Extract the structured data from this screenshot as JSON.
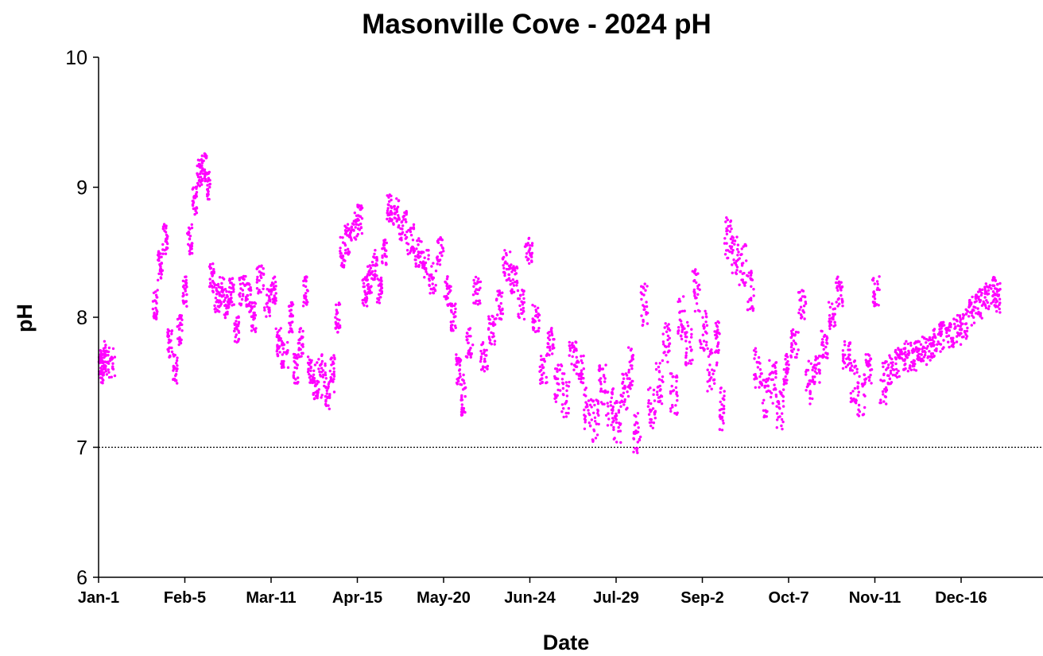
{
  "chart_data": {
    "type": "scatter",
    "title": "Masonville Cove - 2024 pH",
    "xlabel": "Date",
    "ylabel": "pH",
    "ylim": [
      6,
      10
    ],
    "xlim": [
      "2024-01-01",
      "2024-12-31"
    ],
    "y_ticks": [
      "6",
      "7",
      "8",
      "9",
      "10"
    ],
    "x_ticks": [
      "Jan-1",
      "Feb-5",
      "Mar-11",
      "Apr-15",
      "May-20",
      "Jun-24",
      "Jul-29",
      "Sep-2",
      "Oct-7",
      "Nov-11",
      "Dec-16"
    ],
    "grid": false,
    "legend": "none",
    "marker_color": "#ff00ff",
    "reference_line": {
      "y": 7,
      "style": "dotted",
      "color": "#000000"
    },
    "series": [
      {
        "points": [
          [
            "2024-01-01",
            7.65
          ],
          [
            "2024-01-02",
            7.6
          ],
          [
            "2024-01-03",
            7.7
          ],
          [
            "2024-01-04",
            7.65
          ],
          [
            "2024-01-23",
            8.1
          ],
          [
            "2024-01-25",
            8.4
          ],
          [
            "2024-01-27",
            8.6
          ],
          [
            "2024-01-29",
            7.8
          ],
          [
            "2024-01-31",
            7.6
          ],
          [
            "2024-02-02",
            7.9
          ],
          [
            "2024-02-04",
            8.2
          ],
          [
            "2024-02-06",
            8.6
          ],
          [
            "2024-02-08",
            8.9
          ],
          [
            "2024-02-10",
            9.1
          ],
          [
            "2024-02-12",
            9.15
          ],
          [
            "2024-02-14",
            9.0
          ],
          [
            "2024-02-15",
            8.3
          ],
          [
            "2024-02-17",
            8.15
          ],
          [
            "2024-02-19",
            8.2
          ],
          [
            "2024-02-21",
            8.1
          ],
          [
            "2024-02-23",
            8.2
          ],
          [
            "2024-02-25",
            7.9
          ],
          [
            "2024-02-27",
            8.2
          ],
          [
            "2024-03-01",
            8.15
          ],
          [
            "2024-03-03",
            8.0
          ],
          [
            "2024-03-05",
            8.3
          ],
          [
            "2024-03-08",
            8.1
          ],
          [
            "2024-03-11",
            8.2
          ],
          [
            "2024-03-13",
            7.8
          ],
          [
            "2024-03-15",
            7.7
          ],
          [
            "2024-03-18",
            8.0
          ],
          [
            "2024-03-20",
            7.6
          ],
          [
            "2024-03-22",
            7.8
          ],
          [
            "2024-03-24",
            8.2
          ],
          [
            "2024-03-26",
            7.6
          ],
          [
            "2024-03-28",
            7.5
          ],
          [
            "2024-03-30",
            7.55
          ],
          [
            "2024-04-02",
            7.45
          ],
          [
            "2024-04-04",
            7.55
          ],
          [
            "2024-04-06",
            8.0
          ],
          [
            "2024-04-08",
            8.5
          ],
          [
            "2024-04-10",
            8.6
          ],
          [
            "2024-04-12",
            8.7
          ],
          [
            "2024-04-15",
            8.75
          ],
          [
            "2024-04-17",
            8.2
          ],
          [
            "2024-04-19",
            8.3
          ],
          [
            "2024-04-21",
            8.4
          ],
          [
            "2024-04-23",
            8.2
          ],
          [
            "2024-04-25",
            8.5
          ],
          [
            "2024-04-27",
            8.85
          ],
          [
            "2024-04-29",
            8.8
          ],
          [
            "2024-05-02",
            8.7
          ],
          [
            "2024-05-05",
            8.6
          ],
          [
            "2024-05-08",
            8.5
          ],
          [
            "2024-05-11",
            8.4
          ],
          [
            "2024-05-14",
            8.3
          ],
          [
            "2024-05-17",
            8.5
          ],
          [
            "2024-05-20",
            8.2
          ],
          [
            "2024-05-23",
            8.0
          ],
          [
            "2024-05-25",
            7.6
          ],
          [
            "2024-05-27",
            7.4
          ],
          [
            "2024-05-29",
            7.8
          ],
          [
            "2024-06-01",
            8.2
          ],
          [
            "2024-06-04",
            7.7
          ],
          [
            "2024-06-07",
            7.9
          ],
          [
            "2024-06-10",
            8.1
          ],
          [
            "2024-06-13",
            8.4
          ],
          [
            "2024-06-16",
            8.3
          ],
          [
            "2024-06-19",
            8.1
          ],
          [
            "2024-06-22",
            8.5
          ],
          [
            "2024-06-25",
            8.0
          ],
          [
            "2024-06-28",
            7.6
          ],
          [
            "2024-07-01",
            7.8
          ],
          [
            "2024-07-04",
            7.5
          ],
          [
            "2024-07-07",
            7.4
          ],
          [
            "2024-07-10",
            7.7
          ],
          [
            "2024-07-13",
            7.6
          ],
          [
            "2024-07-16",
            7.3
          ],
          [
            "2024-07-19",
            7.2
          ],
          [
            "2024-07-22",
            7.5
          ],
          [
            "2024-07-25",
            7.3
          ],
          [
            "2024-07-28",
            7.2
          ],
          [
            "2024-07-31",
            7.4
          ],
          [
            "2024-08-03",
            7.6
          ],
          [
            "2024-08-05",
            7.1
          ],
          [
            "2024-08-08",
            8.1
          ],
          [
            "2024-08-11",
            7.3
          ],
          [
            "2024-08-14",
            7.5
          ],
          [
            "2024-08-17",
            7.8
          ],
          [
            "2024-08-20",
            7.4
          ],
          [
            "2024-08-23",
            8.0
          ],
          [
            "2024-08-26",
            7.8
          ],
          [
            "2024-08-29",
            8.2
          ],
          [
            "2024-09-01",
            7.9
          ],
          [
            "2024-09-04",
            7.6
          ],
          [
            "2024-09-07",
            7.8
          ],
          [
            "2024-09-09",
            7.3
          ],
          [
            "2024-09-11",
            8.6
          ],
          [
            "2024-09-14",
            8.5
          ],
          [
            "2024-09-17",
            8.4
          ],
          [
            "2024-09-20",
            8.2
          ],
          [
            "2024-09-23",
            7.6
          ],
          [
            "2024-09-26",
            7.4
          ],
          [
            "2024-09-29",
            7.5
          ],
          [
            "2024-10-02",
            7.3
          ],
          [
            "2024-10-05",
            7.6
          ],
          [
            "2024-10-08",
            7.8
          ],
          [
            "2024-10-11",
            8.1
          ],
          [
            "2024-10-14",
            7.5
          ],
          [
            "2024-10-17",
            7.6
          ],
          [
            "2024-10-20",
            7.8
          ],
          [
            "2024-10-23",
            8.0
          ],
          [
            "2024-10-26",
            8.2
          ],
          [
            "2024-10-29",
            7.7
          ],
          [
            "2024-11-01",
            7.5
          ],
          [
            "2024-11-04",
            7.4
          ],
          [
            "2024-11-07",
            7.6
          ],
          [
            "2024-11-10",
            8.2
          ],
          [
            "2024-11-13",
            7.5
          ],
          [
            "2024-11-16",
            7.6
          ],
          [
            "2024-11-19",
            7.65
          ],
          [
            "2024-11-22",
            7.7
          ],
          [
            "2024-11-25",
            7.7
          ],
          [
            "2024-11-28",
            7.75
          ],
          [
            "2024-12-01",
            7.75
          ],
          [
            "2024-12-04",
            7.8
          ],
          [
            "2024-12-07",
            7.85
          ],
          [
            "2024-12-10",
            7.85
          ],
          [
            "2024-12-13",
            7.9
          ],
          [
            "2024-12-16",
            7.95
          ],
          [
            "2024-12-19",
            8.05
          ],
          [
            "2024-12-22",
            8.1
          ],
          [
            "2024-12-25",
            8.15
          ],
          [
            "2024-12-28",
            8.2
          ],
          [
            "2024-12-30",
            8.15
          ]
        ]
      }
    ]
  }
}
